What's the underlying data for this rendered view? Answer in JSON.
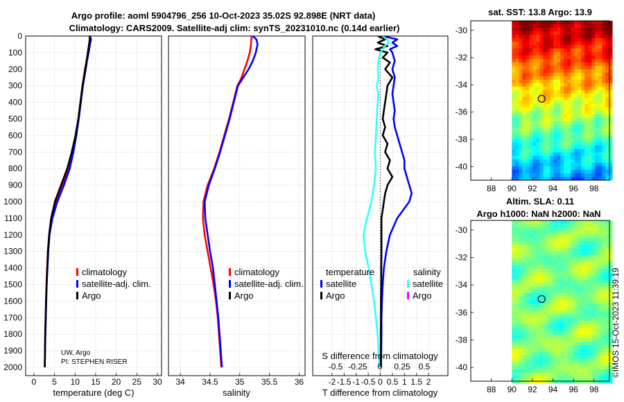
{
  "header": {
    "title_line1": "Argo profile: aoml 5904796_256 10-Oct-2023 35.02S 92.898E (NRT data)",
    "title_line2": "Climatology: CARS2009. Satellite-adj clim: synTS_20231010.nc (0.14d earlier)"
  },
  "depth_axis": {
    "min": 0,
    "max": 2050,
    "ticks": [
      "0",
      "100",
      "200",
      "300",
      "400",
      "500",
      "600",
      "700",
      "800",
      "900",
      "1000",
      "1100",
      "1200",
      "1300",
      "1400",
      "1500",
      "1600",
      "1700",
      "1800",
      "1900",
      "2000"
    ]
  },
  "annotation": {
    "line1": "UW, Argo",
    "line2": "PI: STEPHEN RISER"
  },
  "timestamp": "©IMOS 15-Oct-2023 11:39:19",
  "colors": {
    "climatology": "#ff0000",
    "satellite": "#0000ff",
    "argo": "#000000",
    "sal_sat": "#33ffff",
    "sal_argo": "#ff00ff",
    "grid": "#b8b8b8"
  },
  "chart_data": [
    {
      "type": "line",
      "name": "temperature",
      "xlabel": "temperature (deg C)",
      "ylabel": "depth",
      "xlim": [
        -2,
        31
      ],
      "ylim": [
        0,
        2050
      ],
      "xticks": [
        0,
        5,
        10,
        15,
        20,
        25,
        30
      ],
      "legend": [
        "climatology",
        "satellite-adj. clim.",
        "Argo"
      ],
      "series": [
        {
          "name": "climatology",
          "depth": [
            0,
            50,
            100,
            150,
            200,
            300,
            400,
            500,
            600,
            700,
            800,
            900,
            1000,
            1100,
            1200,
            1300,
            1400,
            1500,
            1600,
            1700,
            1800,
            1900,
            2000
          ],
          "values": [
            13.6,
            13.4,
            13.1,
            12.8,
            12.4,
            11.8,
            11.3,
            10.8,
            10.2,
            9.4,
            8.4,
            6.9,
            5.3,
            4.2,
            3.7,
            3.4,
            3.2,
            3.05,
            2.95,
            2.85,
            2.75,
            2.7,
            2.65
          ]
        },
        {
          "name": "satellite-adj. clim.",
          "depth": [
            0,
            20,
            50,
            100,
            150,
            200,
            300,
            400,
            500,
            600,
            700,
            800,
            900,
            1000,
            1100,
            1200,
            1300,
            1400,
            1500,
            1600,
            1700,
            1800,
            1900,
            2000
          ],
          "values": [
            13.6,
            13.9,
            13.6,
            13.3,
            12.9,
            12.6,
            11.9,
            11.4,
            10.9,
            10.3,
            9.6,
            8.7,
            7.3,
            5.7,
            4.5,
            3.8,
            3.5,
            3.3,
            3.1,
            3.0,
            2.9,
            2.8,
            2.7,
            2.65
          ]
        },
        {
          "name": "Argo",
          "depth": [
            0,
            20,
            50,
            100,
            150,
            200,
            300,
            400,
            500,
            600,
            700,
            800,
            900,
            1000,
            1100,
            1200,
            1300,
            1400,
            1500,
            1600,
            1700,
            1800,
            1900,
            2000
          ],
          "values": [
            13.5,
            13.6,
            13.4,
            13.1,
            12.8,
            12.5,
            11.8,
            11.3,
            10.8,
            10.1,
            9.2,
            8.1,
            6.6,
            5.1,
            4.2,
            3.7,
            3.4,
            3.25,
            3.1,
            2.95,
            2.85,
            2.75,
            2.7,
            2.65
          ]
        }
      ]
    },
    {
      "type": "line",
      "name": "salinity",
      "xlabel": "salinity",
      "ylabel": "depth",
      "xlim": [
        33.8,
        36.1
      ],
      "ylim": [
        0,
        2050
      ],
      "xticks": [
        34,
        34.5,
        35,
        35.5,
        36
      ],
      "xticklabels": [
        "34",
        "34.5",
        "35",
        "35.5",
        "36"
      ],
      "legend": [
        "climatology",
        "satellite-adj. clim.",
        "Argo"
      ],
      "series": [
        {
          "name": "climatology",
          "depth": [
            0,
            50,
            100,
            150,
            200,
            250,
            300,
            400,
            500,
            600,
            700,
            800,
            900,
            1000,
            1100,
            1200,
            1300,
            1400,
            1500,
            1600,
            1700,
            1800,
            1900,
            2000
          ],
          "values": [
            35.2,
            35.19,
            35.17,
            35.13,
            35.08,
            35.03,
            34.96,
            34.89,
            34.82,
            34.74,
            34.66,
            34.57,
            34.46,
            34.39,
            34.38,
            34.41,
            34.46,
            34.51,
            34.56,
            34.6,
            34.63,
            34.65,
            34.67,
            34.69
          ]
        },
        {
          "name": "satellite-adj. clim.",
          "depth": [
            0,
            20,
            50,
            100,
            150,
            200,
            250,
            300,
            400,
            500,
            600,
            700,
            800,
            900,
            1000,
            1100,
            1200,
            1300,
            1400,
            1500,
            1600,
            1700,
            1800,
            1900,
            2000
          ],
          "values": [
            35.22,
            35.28,
            35.3,
            35.27,
            35.22,
            35.15,
            35.06,
            34.97,
            34.9,
            34.83,
            34.75,
            34.67,
            34.58,
            34.48,
            34.41,
            34.42,
            34.46,
            34.5,
            34.55,
            34.58,
            34.61,
            34.64,
            34.66,
            34.68,
            34.7
          ]
        },
        {
          "name": "Argo",
          "depth": [],
          "values": []
        }
      ]
    },
    {
      "type": "line",
      "name": "difference",
      "xlabel": "T difference from climatology",
      "top_xlabel": "S difference from climatology",
      "ylabel": "depth",
      "xlim": [
        -2.8,
        2.8
      ],
      "ylim": [
        0,
        2050
      ],
      "xticks": [
        -2,
        -1.5,
        -1,
        -0.5,
        0,
        0.5,
        1,
        1.5,
        2
      ],
      "xticklabels": [
        "-2",
        "-1.5",
        "-1",
        "-0.5",
        "0",
        "0.5",
        "1",
        "1.5",
        "2"
      ],
      "top_xticklabels": [
        "-0.5",
        "-0.25",
        "0",
        "0.25",
        "0.5"
      ],
      "legend_temperature_title": "temperature",
      "legend_salinity_title": "salinity",
      "legend_temperature": [
        "satellite",
        "Argo"
      ],
      "legend_salinity": [
        "satellite",
        "Argo"
      ],
      "series": [
        {
          "name": "T satellite",
          "depth": [
            0,
            20,
            40,
            60,
            80,
            100,
            150,
            200,
            250,
            300,
            350,
            400,
            450,
            500,
            550,
            600,
            650,
            700,
            750,
            800,
            850,
            900,
            950,
            1000,
            1100,
            1200,
            1300,
            1400,
            1500,
            1600,
            1700,
            1800,
            1900,
            2000
          ],
          "values": [
            0.1,
            0.7,
            0.5,
            0.7,
            0.4,
            0.5,
            0.6,
            0.5,
            0.6,
            0.55,
            0.5,
            0.55,
            0.6,
            0.55,
            0.6,
            0.7,
            0.8,
            0.9,
            1.0,
            1.0,
            1.1,
            1.2,
            1.3,
            1.2,
            0.7,
            0.4,
            0.25,
            0.15,
            0.1,
            0.07,
            0.05,
            0.05,
            0.04,
            0.03
          ]
        },
        {
          "name": "T Argo",
          "depth": [
            0,
            20,
            40,
            60,
            80,
            100,
            130,
            160,
            200,
            250,
            300,
            350,
            400,
            450,
            500,
            550,
            600,
            650,
            700,
            750,
            800,
            850,
            900,
            950,
            1000,
            1050,
            1100,
            1200,
            1300,
            1400,
            1500,
            1600,
            1700,
            1800,
            1900,
            2000
          ],
          "values": [
            -0.1,
            0.2,
            -0.1,
            0.3,
            -0.2,
            0.3,
            0.1,
            0.4,
            0.2,
            0.5,
            0.3,
            0.25,
            0.2,
            0.15,
            0.1,
            0.2,
            0.1,
            0.3,
            0.2,
            0.4,
            0.3,
            0.5,
            0.3,
            0.2,
            0.15,
            0.1,
            0.05,
            0.05,
            0.05,
            0.04,
            0.04,
            0.03,
            0.03,
            0.02,
            0.02,
            0.02
          ]
        },
        {
          "name": "S satellite",
          "depth": [
            0,
            20,
            40,
            60,
            80,
            100,
            150,
            200,
            250,
            300,
            350,
            400,
            500,
            600,
            700,
            800,
            900,
            1000,
            1100,
            1200,
            1300,
            1400,
            1500,
            1600,
            1700,
            1800,
            1900,
            2000
          ],
          "values": [
            0.02,
            0.08,
            0.1,
            0.05,
            0.03,
            0.0,
            -0.02,
            -0.03,
            -0.02,
            -0.04,
            -0.02,
            -0.03,
            -0.04,
            -0.05,
            -0.06,
            -0.05,
            -0.07,
            -0.1,
            -0.15,
            -0.19,
            -0.17,
            -0.13,
            -0.1,
            -0.07,
            -0.05,
            -0.03,
            -0.02,
            -0.01
          ]
        },
        {
          "name": "S Argo",
          "depth": [],
          "values": []
        }
      ]
    },
    {
      "type": "heatmap",
      "name": "sst_map",
      "title": "sat. SST: 13.8 Argo: 13.9",
      "xlim": [
        86,
        99.5
      ],
      "ylim": [
        -41,
        -29.3
      ],
      "xticks": [
        88,
        90,
        92,
        94,
        96,
        98
      ],
      "yticks": [
        -30,
        -32,
        -34,
        -36,
        -38,
        -40
      ],
      "marker": {
        "lon": 92.898,
        "lat": -35.02
      }
    },
    {
      "type": "heatmap",
      "name": "sla_map",
      "title_line1": "Altim. SLA: 0.11",
      "title_line2": "Argo h1000: NaN h2000: NaN",
      "xlim": [
        86,
        99.5
      ],
      "ylim": [
        -41,
        -29.3
      ],
      "xticks": [
        88,
        90,
        92,
        94,
        96,
        98
      ],
      "yticks": [
        -30,
        -32,
        -34,
        -36,
        -38,
        -40
      ],
      "marker": {
        "lon": 92.898,
        "lat": -35.02
      }
    }
  ]
}
